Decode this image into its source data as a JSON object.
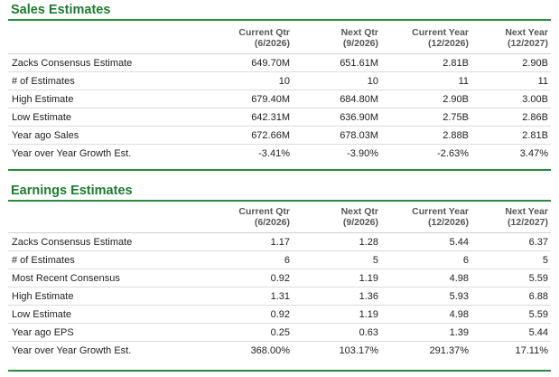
{
  "sales": {
    "title": "Sales Estimates",
    "columns": [
      {
        "line1": "Current Qtr",
        "line2": "(6/2026)"
      },
      {
        "line1": "Next Qtr",
        "line2": "(9/2026)"
      },
      {
        "line1": "Current Year",
        "line2": "(12/2026)"
      },
      {
        "line1": "Next Year",
        "line2": "(12/2027)"
      }
    ],
    "rows": [
      {
        "label": "Zacks Consensus Estimate",
        "values": [
          "649.70M",
          "651.61M",
          "2.81B",
          "2.90B"
        ]
      },
      {
        "label": "# of Estimates",
        "values": [
          "10",
          "10",
          "11",
          "11"
        ]
      },
      {
        "label": "High Estimate",
        "values": [
          "679.40M",
          "684.80M",
          "2.90B",
          "3.00B"
        ]
      },
      {
        "label": "Low Estimate",
        "values": [
          "642.31M",
          "636.90M",
          "2.75B",
          "2.86B"
        ]
      },
      {
        "label": "Year ago Sales",
        "values": [
          "672.66M",
          "678.03M",
          "2.88B",
          "2.81B"
        ]
      },
      {
        "label": "Year over Year Growth Est.",
        "values": [
          "-3.41%",
          "-3.90%",
          "-2.63%",
          "3.47%"
        ]
      }
    ]
  },
  "earnings": {
    "title": "Earnings Estimates",
    "columns": [
      {
        "line1": "Current Qtr",
        "line2": "(6/2026)"
      },
      {
        "line1": "Next Qtr",
        "line2": "(9/2026)"
      },
      {
        "line1": "Current Year",
        "line2": "(12/2026)"
      },
      {
        "line1": "Next Year",
        "line2": "(12/2027)"
      }
    ],
    "rows": [
      {
        "label": "Zacks Consensus Estimate",
        "values": [
          "1.17",
          "1.28",
          "5.44",
          "6.37"
        ]
      },
      {
        "label": "# of Estimates",
        "values": [
          "6",
          "5",
          "6",
          "5"
        ]
      },
      {
        "label": "Most Recent Consensus",
        "values": [
          "0.92",
          "1.19",
          "4.98",
          "5.59"
        ]
      },
      {
        "label": "High Estimate",
        "values": [
          "1.31",
          "1.36",
          "5.93",
          "6.88"
        ]
      },
      {
        "label": "Low Estimate",
        "values": [
          "0.92",
          "1.19",
          "4.98",
          "5.59"
        ]
      },
      {
        "label": "Year ago EPS",
        "values": [
          "0.25",
          "0.63",
          "1.39",
          "5.44"
        ]
      },
      {
        "label": "Year over Year Growth Est.",
        "values": [
          "368.00%",
          "103.17%",
          "291.37%",
          "17.11%"
        ]
      }
    ]
  },
  "colors": {
    "title_green": "#1e7b30",
    "rule_green": "#2b8a3e"
  }
}
